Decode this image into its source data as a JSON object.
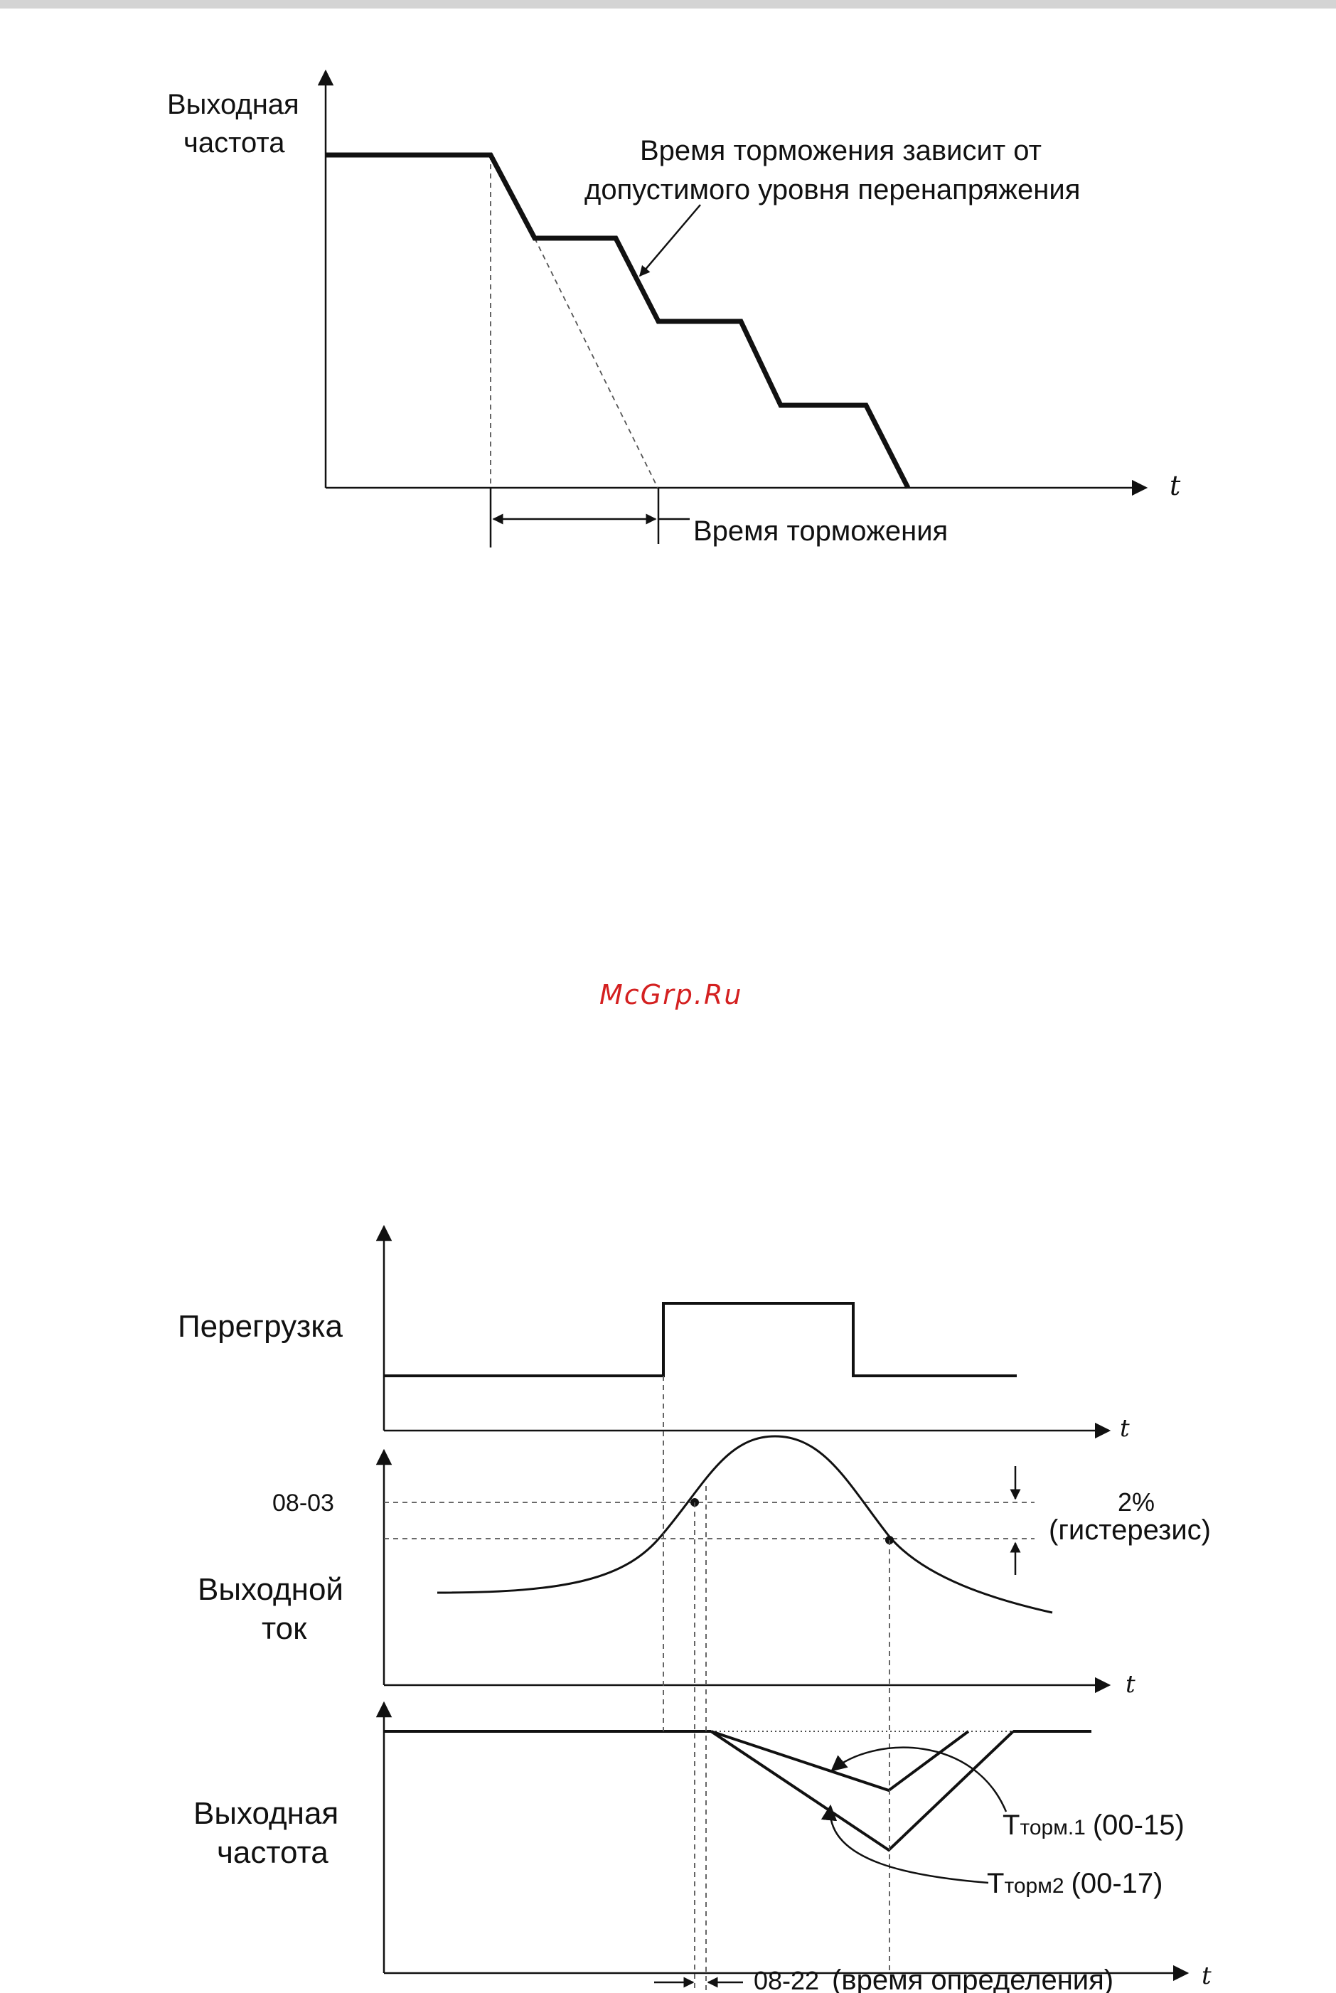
{
  "watermark": "McGrp.Ru",
  "diagram1": {
    "y_label_line1": "Выходная",
    "y_label_line2": "частота",
    "x_label": "t",
    "annotation_line1": "Время торможения зависит от",
    "annotation_line2": "допустимого уровня перенапряжения",
    "decel_time_label": "Время торможения"
  },
  "diagram2": {
    "overload_label": "Перегрузка",
    "t1": "t",
    "level_label": "08-03",
    "hysteresis_pct": "2%",
    "hysteresis_label": "(гистерезис)",
    "current_label_line1": "Выходной",
    "current_label_line2": "ток",
    "t2": "t",
    "freq_label_line1": "Выходная",
    "freq_label_line2": "частота",
    "t3": "t",
    "tdecel1_main": "T",
    "tdecel1_sub": "торм.1",
    "tdecel1_param": "(00-15)",
    "tdecel2_main": "T",
    "tdecel2_sub": "торм2",
    "tdecel2_param": "(00-17)",
    "detect_param": "08-22",
    "detect_label": "(время определения)"
  },
  "colors": {
    "line": "#111111",
    "watermark": "#d42020",
    "topbar": "#d4d4d4"
  }
}
